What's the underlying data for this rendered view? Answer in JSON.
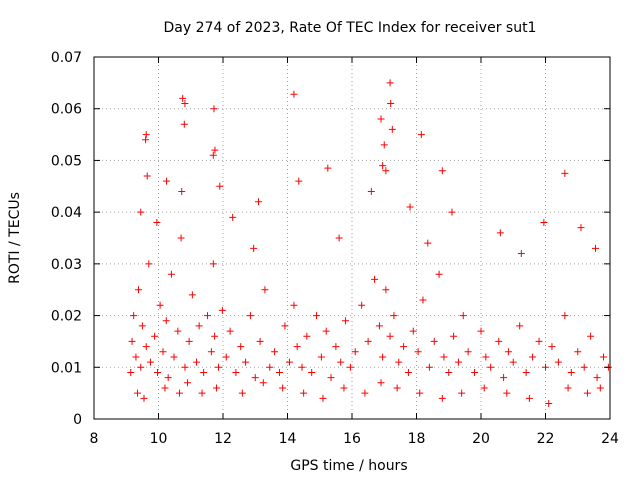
{
  "chart_data": {
    "type": "scatter",
    "title": "Day 274 of 2023, Rate Of TEC Index for receiver sut1",
    "xlabel": "GPS time / hours",
    "ylabel": "ROTI / TECUs",
    "xlim": [
      8,
      24
    ],
    "ylim": [
      0,
      0.07
    ],
    "x_ticks": [
      8,
      10,
      12,
      14,
      16,
      18,
      20,
      22,
      24
    ],
    "y_ticks": [
      0,
      0.01,
      0.02,
      0.03,
      0.04,
      0.05,
      0.06,
      0.07
    ],
    "x_tick_labels": [
      "8",
      "10",
      "12",
      "14",
      "16",
      "18",
      "20",
      "22",
      "24"
    ],
    "y_tick_labels": [
      "0",
      "0.01",
      "0.02",
      "0.03",
      "0.04",
      "0.05",
      "0.06",
      "0.07"
    ],
    "grid": true,
    "marker": "+",
    "marker_color": "#ff0000",
    "series": [
      {
        "name": "ROTI",
        "x": [
          9.14,
          9.18,
          9.23,
          9.3,
          9.38,
          9.45,
          9.5,
          9.62,
          9.7,
          9.75,
          9.88,
          9.97,
          10.05,
          10.14,
          10.24,
          10.3,
          10.4,
          10.48,
          10.6,
          10.7,
          10.82,
          10.95,
          11.05,
          11.18,
          11.26,
          11.4,
          11.52,
          11.64,
          11.7,
          11.74,
          11.86,
          11.98,
          12.1,
          12.22,
          12.4,
          12.55,
          12.7,
          12.85,
          13.0,
          13.15,
          13.3,
          13.45,
          13.6,
          13.75,
          13.92,
          14.06,
          14.2,
          14.3,
          14.45,
          14.6,
          14.75,
          14.9,
          15.05,
          15.2,
          15.35,
          15.5,
          15.65,
          15.8,
          15.95,
          16.1,
          16.3,
          16.5,
          16.7,
          16.85,
          16.95,
          17.05,
          17.18,
          17.3,
          17.45,
          17.6,
          17.75,
          17.9,
          18.05,
          18.2,
          18.4,
          18.55,
          18.7,
          18.85,
          19.0,
          19.15,
          19.3,
          19.45,
          19.6,
          19.8,
          20.0,
          20.15,
          20.3,
          20.55,
          20.7,
          20.85,
          21.0,
          21.2,
          21.4,
          21.6,
          21.8,
          22.0,
          22.2,
          22.4,
          22.6,
          22.8,
          23.0,
          23.2,
          23.4,
          23.6,
          23.8,
          23.95,
          9.35,
          9.55,
          10.2,
          10.65,
          10.9,
          11.35,
          11.8,
          12.6,
          13.25,
          13.85,
          14.5,
          15.1,
          15.75,
          16.4,
          16.9,
          17.4,
          18.1,
          18.8,
          19.4,
          20.1,
          20.8,
          21.5,
          22.1,
          22.7,
          23.3,
          23.7,
          9.62,
          10.75,
          10.82,
          11.72,
          11.75,
          14.2,
          17.18,
          17.2,
          9.6,
          10.8,
          11.7,
          16.9,
          17.0,
          17.25,
          18.15,
          16.95,
          17.05,
          10.72,
          9.65,
          10.25,
          15.25,
          22.6,
          18.8,
          11.9,
          14.35,
          9.95,
          12.3,
          13.1,
          16.6,
          17.8,
          19.1,
          20.6,
          21.95,
          23.1,
          9.45,
          12.95,
          15.6,
          18.35,
          21.25,
          23.55
        ],
        "y": [
          0.009,
          0.015,
          0.02,
          0.012,
          0.025,
          0.01,
          0.018,
          0.014,
          0.03,
          0.011,
          0.016,
          0.009,
          0.022,
          0.013,
          0.019,
          0.008,
          0.028,
          0.012,
          0.017,
          0.035,
          0.01,
          0.015,
          0.024,
          0.011,
          0.018,
          0.009,
          0.02,
          0.013,
          0.03,
          0.016,
          0.01,
          0.021,
          0.012,
          0.017,
          0.009,
          0.014,
          0.011,
          0.02,
          0.008,
          0.015,
          0.025,
          0.01,
          0.013,
          0.009,
          0.018,
          0.011,
          0.022,
          0.014,
          0.01,
          0.016,
          0.009,
          0.02,
          0.012,
          0.017,
          0.008,
          0.014,
          0.011,
          0.019,
          0.01,
          0.013,
          0.022,
          0.015,
          0.027,
          0.018,
          0.012,
          0.025,
          0.016,
          0.02,
          0.011,
          0.014,
          0.009,
          0.017,
          0.013,
          0.023,
          0.01,
          0.015,
          0.028,
          0.012,
          0.009,
          0.016,
          0.011,
          0.02,
          0.013,
          0.009,
          0.017,
          0.012,
          0.01,
          0.015,
          0.008,
          0.013,
          0.011,
          0.018,
          0.009,
          0.012,
          0.015,
          0.01,
          0.014,
          0.011,
          0.02,
          0.009,
          0.013,
          0.01,
          0.016,
          0.008,
          0.012,
          0.01,
          0.005,
          0.004,
          0.006,
          0.005,
          0.007,
          0.005,
          0.006,
          0.005,
          0.007,
          0.006,
          0.005,
          0.004,
          0.006,
          0.005,
          0.007,
          0.006,
          0.005,
          0.004,
          0.005,
          0.006,
          0.005,
          0.004,
          0.003,
          0.006,
          0.005,
          0.006,
          0.055,
          0.062,
          0.061,
          0.06,
          0.052,
          0.0628,
          0.065,
          0.061,
          0.054,
          0.057,
          0.051,
          0.058,
          0.053,
          0.056,
          0.055,
          0.049,
          0.048,
          0.044,
          0.047,
          0.046,
          0.0485,
          0.0475,
          0.048,
          0.045,
          0.046,
          0.038,
          0.039,
          0.042,
          0.044,
          0.041,
          0.04,
          0.036,
          0.038,
          0.037,
          0.04,
          0.033,
          0.035,
          0.034,
          0.032,
          0.033
        ]
      }
    ]
  }
}
